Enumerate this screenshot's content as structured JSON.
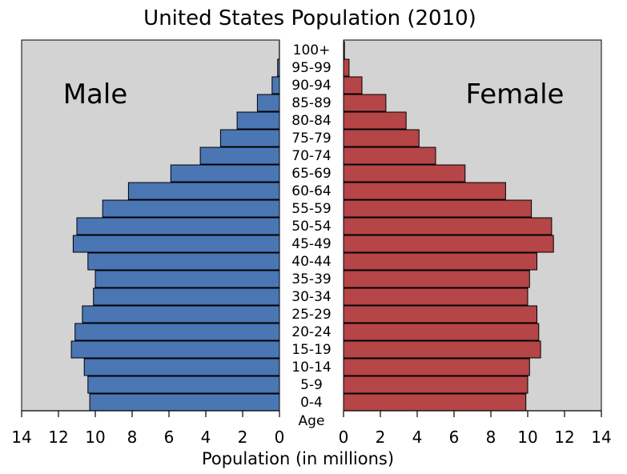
{
  "chart_data": {
    "type": "bar",
    "title": "United States Population (2010)",
    "xlabel": "Population (in millions)",
    "category_label": "Age",
    "categories": [
      "0-4",
      "5-9",
      "10-14",
      "15-19",
      "20-24",
      "25-29",
      "30-34",
      "35-39",
      "40-44",
      "45-49",
      "50-54",
      "55-59",
      "60-64",
      "65-69",
      "70-74",
      "75-79",
      "80-84",
      "85-89",
      "90-94",
      "95-99",
      "100+"
    ],
    "series": [
      {
        "name": "Male",
        "values": [
          10.3,
          10.4,
          10.6,
          11.3,
          11.1,
          10.7,
          10.1,
          10.0,
          10.4,
          11.2,
          11.0,
          9.6,
          8.2,
          5.9,
          4.3,
          3.2,
          2.3,
          1.2,
          0.4,
          0.1,
          0.01
        ]
      },
      {
        "name": "Female",
        "values": [
          9.9,
          10.0,
          10.1,
          10.7,
          10.6,
          10.5,
          10.0,
          10.1,
          10.5,
          11.4,
          11.3,
          10.2,
          8.8,
          6.6,
          5.0,
          4.1,
          3.4,
          2.3,
          1.0,
          0.3,
          0.05
        ]
      }
    ],
    "xlim": [
      0,
      14
    ],
    "xticks": [
      0,
      2,
      4,
      6,
      8,
      10,
      12,
      14
    ],
    "grid": false,
    "colors": {
      "male": "#4a76b4",
      "female": "#b54547",
      "panel": "#d3d3d3"
    }
  }
}
